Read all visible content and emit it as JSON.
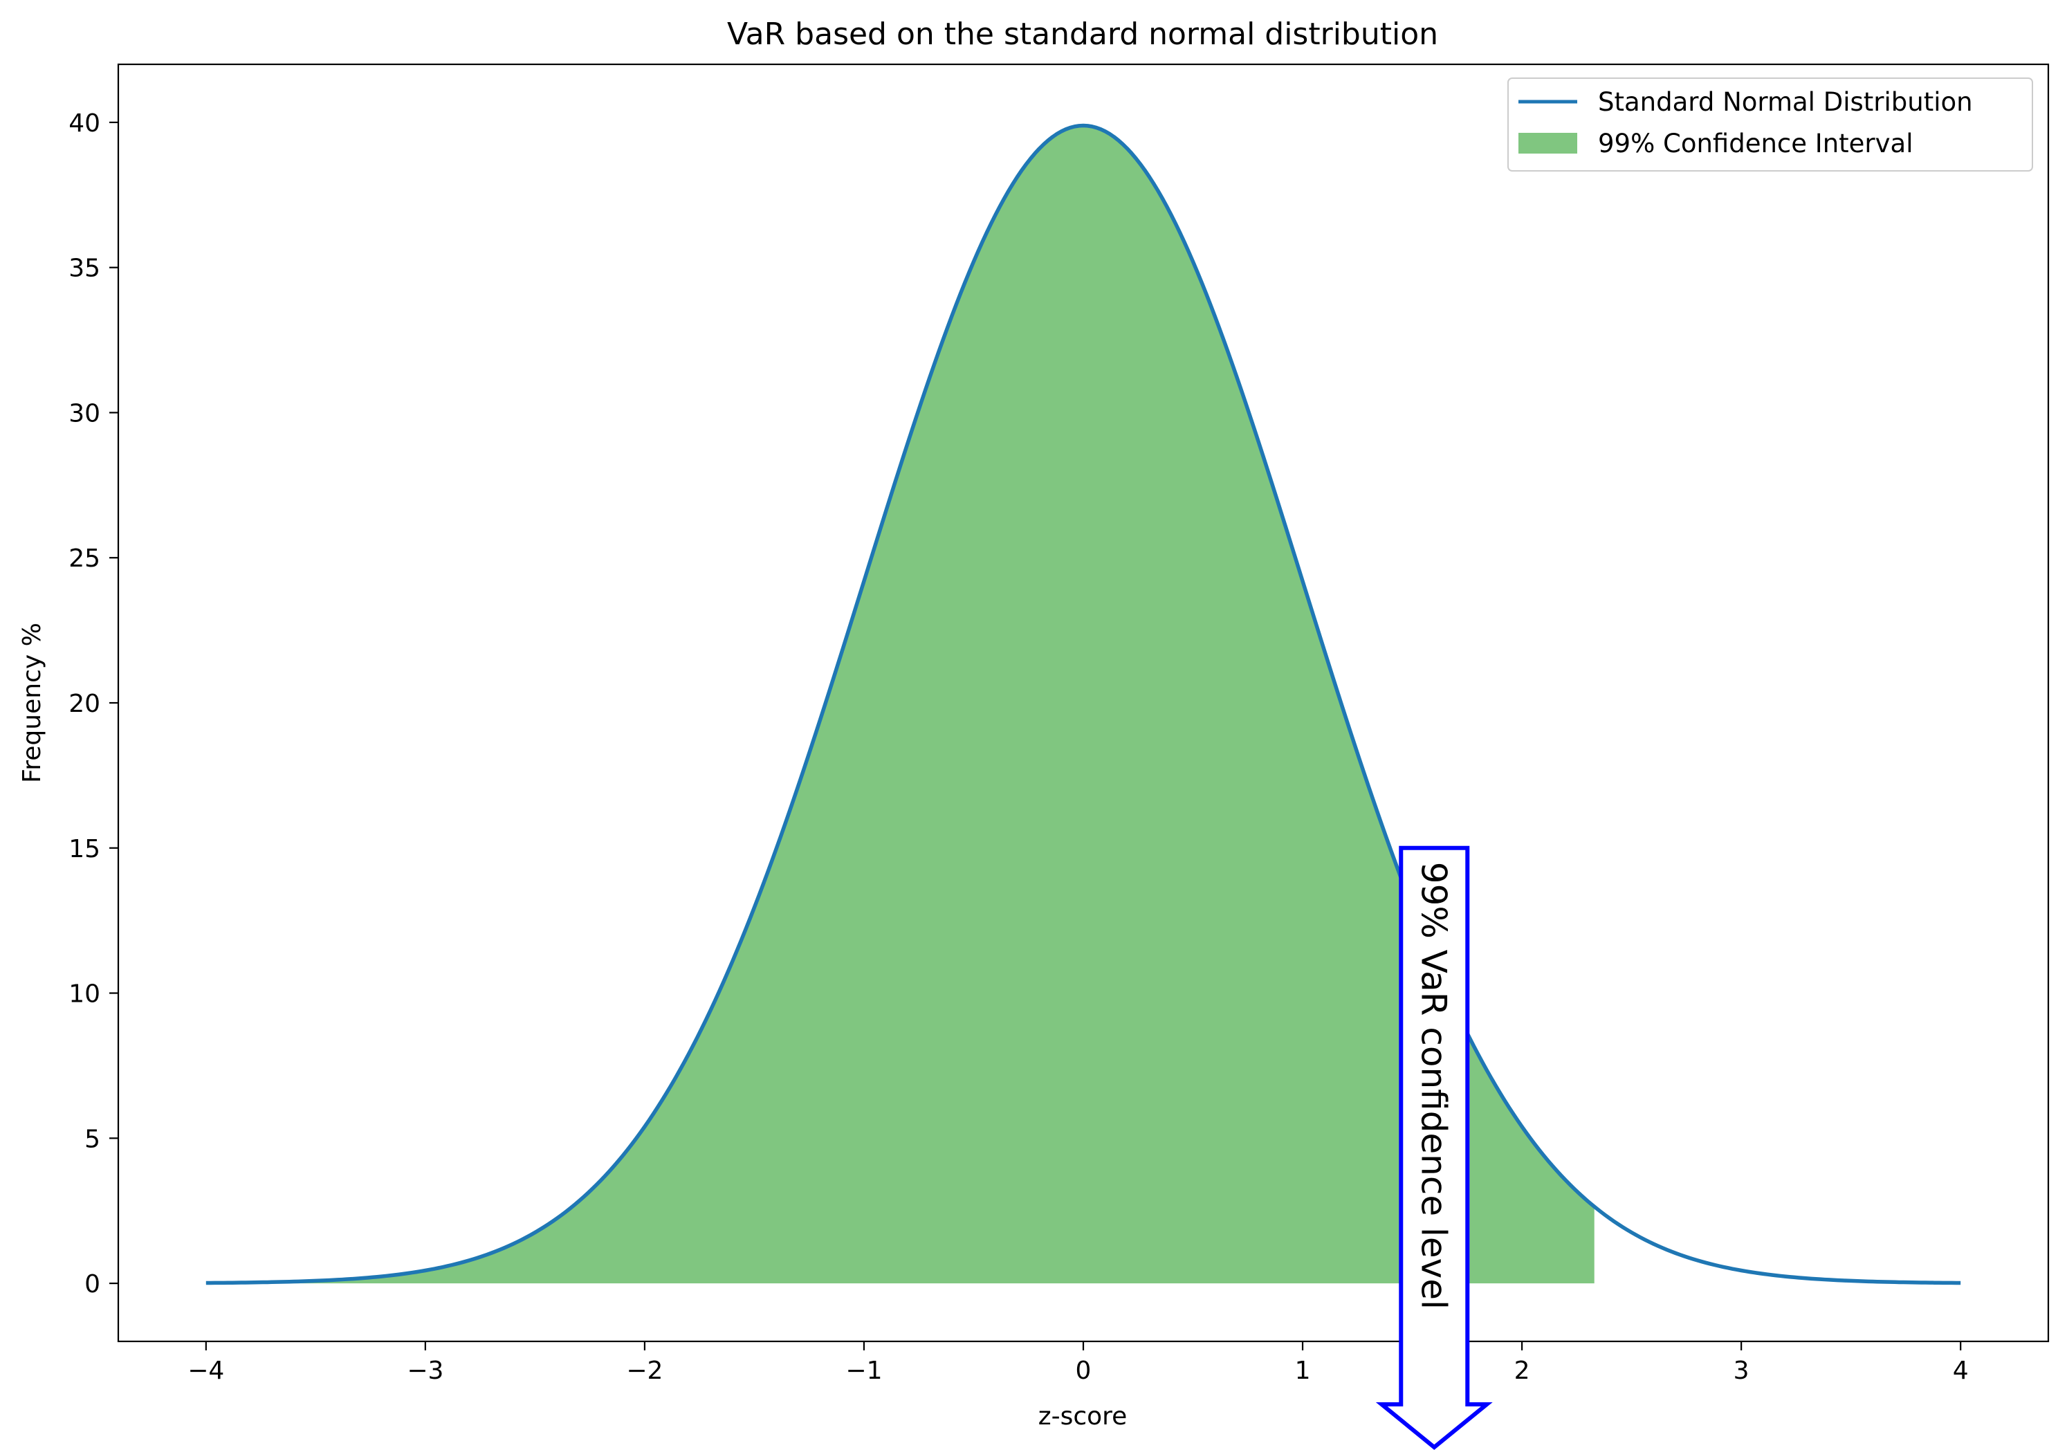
{
  "chart_data": {
    "type": "area",
    "title": "VaR based on the standard normal distribution",
    "xlabel": "z-score",
    "ylabel": "Frequency %",
    "xlim": [
      -4.4,
      4.4
    ],
    "ylim": [
      -2,
      42
    ],
    "x_ticks": [
      -4,
      -3,
      -2,
      -1,
      0,
      1,
      2,
      3,
      4
    ],
    "x_tick_labels": [
      "−4",
      "−3",
      "−2",
      "−1",
      "0",
      "1",
      "2",
      "3",
      "4"
    ],
    "y_ticks": [
      0,
      5,
      10,
      15,
      20,
      25,
      30,
      35,
      40
    ],
    "y_tick_labels": [
      "0",
      "5",
      "10",
      "15",
      "20",
      "25",
      "30",
      "35",
      "40"
    ],
    "grid": false,
    "legend_position": "top-right",
    "series": [
      {
        "name": "Standard Normal Distribution",
        "kind": "line",
        "color": "#1f77b4",
        "x": [
          -4.0,
          -3.5,
          -3.0,
          -2.5,
          -2.0,
          -1.5,
          -1.0,
          -0.5,
          0.0,
          0.5,
          1.0,
          1.5,
          2.0,
          2.5,
          3.0,
          3.5,
          4.0
        ],
        "y": [
          0.01,
          0.09,
          0.44,
          1.75,
          5.4,
          12.95,
          24.2,
          35.21,
          39.89,
          35.21,
          24.2,
          12.95,
          5.4,
          1.75,
          0.44,
          0.09,
          0.01
        ]
      },
      {
        "name": "99% Confidence Interval",
        "kind": "fill",
        "color": "#2ca02c",
        "opacity": 0.6,
        "x_min": -4.0,
        "x_max": 2.33
      }
    ],
    "annotations": [
      {
        "text": "99% VaR confidence level",
        "x": 1.6,
        "y_top": 15.0,
        "edge_color": "#0000ff"
      }
    ]
  }
}
